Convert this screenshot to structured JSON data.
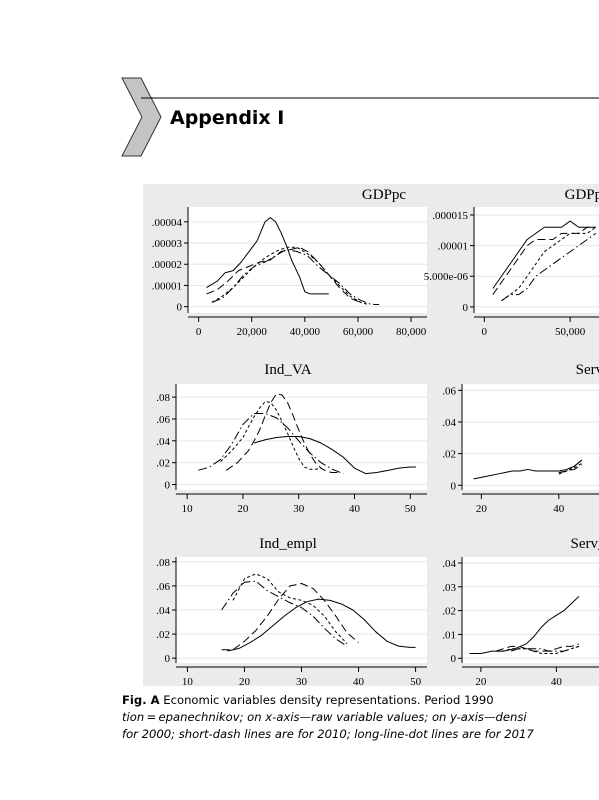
{
  "header": {
    "title": "Appendix I"
  },
  "chart_data": [
    {
      "type": "line",
      "title": "GDPpc",
      "yticks": [
        ".00004",
        ".00003",
        ".00002",
        ".00001",
        "0"
      ],
      "xticks": [
        "0",
        "20,000",
        "40,000",
        "60,000",
        "80,000"
      ],
      "xlim": [
        -4000,
        86000
      ],
      "ylim": [
        -3e-06,
        4.7e-05
      ],
      "series": [
        {
          "style": "solid",
          "x": [
            3000,
            7000,
            10000,
            13000,
            16000,
            19000,
            22000,
            25000,
            27000,
            29000,
            31000,
            33000,
            35000,
            38000,
            40000,
            42000,
            44000,
            47000,
            49000
          ],
          "y": [
            9e-06,
            1.2e-05,
            1.6e-05,
            1.7e-05,
            2.1e-05,
            2.6e-05,
            3.1e-05,
            4e-05,
            4.2e-05,
            4e-05,
            3.5e-05,
            2.9e-05,
            2.2e-05,
            1.4e-05,
            7e-06,
            6e-06,
            6e-06,
            6e-06,
            6e-06
          ]
        },
        {
          "style": "long-dash",
          "x": [
            3000,
            7000,
            11000,
            15000,
            19000,
            23000,
            27000,
            31000,
            35000,
            38000,
            41000,
            45000,
            49000,
            53000,
            57000,
            61000
          ],
          "y": [
            6e-06,
            8e-06,
            1.2e-05,
            1.7e-05,
            1.9e-05,
            2.1e-05,
            2.2e-05,
            2.6e-05,
            2.7e-05,
            2.8e-05,
            2.6e-05,
            2.1e-05,
            1.5e-05,
            9e-06,
            4e-06,
            2e-06
          ]
        },
        {
          "style": "short-dash",
          "x": [
            5000,
            9000,
            13000,
            17000,
            21000,
            25000,
            29000,
            33000,
            37000,
            41000,
            45000,
            49000,
            53000,
            57000,
            61000,
            64000
          ],
          "y": [
            2e-06,
            5e-06,
            9e-06,
            1.4e-05,
            1.9e-05,
            2.3e-05,
            2.6e-05,
            2.8e-05,
            2.8e-05,
            2.5e-05,
            2.1e-05,
            1.5e-05,
            1e-05,
            5e-06,
            2e-06,
            1e-06
          ]
        },
        {
          "style": "long-line-dot",
          "x": [
            5000,
            9000,
            13000,
            17000,
            21000,
            25000,
            29000,
            33000,
            37000,
            41000,
            45000,
            49000,
            53000,
            57000,
            61000,
            65000,
            68000
          ],
          "y": [
            2e-06,
            4e-06,
            9e-06,
            1.5e-05,
            1.9e-05,
            2.1e-05,
            2.4e-05,
            2.7e-05,
            2.6e-05,
            2.4e-05,
            1.9e-05,
            1.5e-05,
            1.1e-05,
            6e-06,
            3e-06,
            1e-06,
            1e-06
          ]
        }
      ]
    },
    {
      "type": "line",
      "title": "GDPpc_PPS",
      "yticks": [
        ".000015",
        ".00001",
        "5.000e-06",
        "0"
      ],
      "xticks": [
        "0",
        "50,000"
      ],
      "xlim": [
        -6000,
        75000
      ],
      "ylim": [
        -1e-06,
        1.63e-05
      ],
      "series": [
        {
          "style": "solid",
          "x": [
            5000,
            10000,
            15000,
            20000,
            25000,
            30000,
            35000,
            40000,
            45000,
            50000,
            55000,
            60000,
            65000
          ],
          "y": [
            3e-06,
            5e-06,
            7e-06,
            9e-06,
            1.1e-05,
            1.2e-05,
            1.3e-05,
            1.3e-05,
            1.3e-05,
            1.4e-05,
            1.3e-05,
            1.3e-05,
            1.3e-05
          ]
        },
        {
          "style": "long-dash",
          "x": [
            5000,
            10000,
            15000,
            20000,
            25000,
            30000,
            35000,
            40000,
            45000,
            50000,
            55000,
            60000,
            65000
          ],
          "y": [
            2e-06,
            4e-06,
            6e-06,
            8e-06,
            1e-05,
            1.1e-05,
            1.1e-05,
            1.1e-05,
            1.2e-05,
            1.2e-05,
            1.2e-05,
            1.3e-05,
            1.3e-05
          ]
        },
        {
          "style": "short-dash",
          "x": [
            10000,
            15000,
            20000,
            25000,
            30000,
            35000,
            40000,
            45000,
            50000,
            55000,
            60000,
            65000
          ],
          "y": [
            1e-06,
            2e-06,
            3e-06,
            5e-06,
            7e-06,
            9e-06,
            1e-05,
            1.1e-05,
            1.2e-05,
            1.2e-05,
            1.2e-05,
            1.3e-05
          ]
        },
        {
          "style": "long-line-dot",
          "x": [
            10000,
            15000,
            20000,
            25000,
            30000,
            35000,
            40000,
            45000,
            50000,
            55000,
            60000,
            65000
          ],
          "y": [
            1e-06,
            2e-06,
            2e-06,
            3e-06,
            5e-06,
            6e-06,
            7e-06,
            8e-06,
            9e-06,
            1e-05,
            1.1e-05,
            1.2e-05
          ]
        }
      ]
    },
    {
      "type": "line",
      "title": "Ind_VA",
      "yticks": [
        ".08",
        ".06",
        ".04",
        ".02",
        "0"
      ],
      "xticks": [
        "10",
        "20",
        "30",
        "40",
        "50"
      ],
      "xlim": [
        8,
        53
      ],
      "ylim": [
        -0.005,
        0.092
      ],
      "series": [
        {
          "style": "solid",
          "x": [
            22,
            24,
            26,
            28,
            30,
            32,
            34,
            36,
            38,
            40,
            42,
            44,
            46,
            48,
            50,
            51
          ],
          "y": [
            0.038,
            0.041,
            0.043,
            0.044,
            0.044,
            0.042,
            0.038,
            0.032,
            0.025,
            0.015,
            0.01,
            0.011,
            0.013,
            0.015,
            0.016,
            0.016
          ]
        },
        {
          "style": "long-dash",
          "x": [
            17,
            19,
            21,
            22,
            23,
            24,
            25,
            26,
            27,
            28,
            29,
            30,
            31,
            32,
            33,
            34,
            35,
            36,
            37
          ],
          "y": [
            0.013,
            0.02,
            0.031,
            0.04,
            0.05,
            0.063,
            0.075,
            0.083,
            0.082,
            0.075,
            0.063,
            0.05,
            0.038,
            0.028,
            0.02,
            0.015,
            0.012,
            0.011,
            0.011
          ]
        },
        {
          "style": "short-dash",
          "x": [
            16,
            18,
            20,
            21,
            22,
            23,
            24,
            25,
            26,
            27,
            28,
            29,
            30,
            31,
            32,
            33,
            34
          ],
          "y": [
            0.021,
            0.031,
            0.043,
            0.053,
            0.062,
            0.07,
            0.076,
            0.075,
            0.068,
            0.058,
            0.047,
            0.035,
            0.024,
            0.016,
            0.014,
            0.014,
            0.015
          ]
        },
        {
          "style": "long-line-dot",
          "x": [
            12,
            14,
            16,
            18,
            20,
            22,
            24,
            26,
            28,
            30,
            32,
            34,
            36,
            38
          ],
          "y": [
            0.013,
            0.016,
            0.023,
            0.037,
            0.055,
            0.065,
            0.065,
            0.061,
            0.052,
            0.04,
            0.029,
            0.02,
            0.014,
            0.01
          ]
        }
      ]
    },
    {
      "type": "line",
      "title": "Serv_VA",
      "yticks": [
        ".06",
        ".04",
        ".02",
        "0"
      ],
      "xticks": [
        "20",
        "40"
      ],
      "xlim": [
        15,
        54
      ],
      "ylim": [
        -0.003,
        0.064
      ],
      "series": [
        {
          "style": "solid",
          "x": [
            18,
            20,
            22,
            24,
            26,
            28,
            30,
            32,
            34,
            36,
            38,
            40,
            42,
            44,
            46
          ],
          "y": [
            0.004,
            0.005,
            0.006,
            0.007,
            0.008,
            0.009,
            0.009,
            0.01,
            0.009,
            0.009,
            0.009,
            0.009,
            0.01,
            0.012,
            0.016
          ]
        },
        {
          "style": "long-dash",
          "x": [
            40,
            42,
            44,
            46
          ],
          "y": [
            0.008,
            0.009,
            0.01,
            0.013
          ]
        },
        {
          "style": "short-dash",
          "x": [
            40,
            42,
            44,
            46
          ],
          "y": [
            0.007,
            0.009,
            0.011,
            0.014
          ]
        },
        {
          "style": "long-line-dot",
          "x": [
            40,
            42,
            44,
            46
          ],
          "y": [
            0.008,
            0.009,
            0.012,
            0.016
          ]
        }
      ]
    },
    {
      "type": "line",
      "title": "Ind_empl",
      "yticks": [
        ".08",
        ".06",
        ".04",
        ".02",
        "0"
      ],
      "xticks": [
        "10",
        "20",
        "30",
        "40",
        "50"
      ],
      "xlim": [
        8,
        52
      ],
      "ylim": [
        -0.004,
        0.084
      ],
      "series": [
        {
          "style": "solid",
          "x": [
            17,
            19,
            21,
            23,
            25,
            27,
            29,
            31,
            33,
            35,
            37,
            39,
            41,
            43,
            45,
            47,
            49,
            50
          ],
          "y": [
            0.006,
            0.008,
            0.013,
            0.019,
            0.027,
            0.035,
            0.042,
            0.047,
            0.049,
            0.048,
            0.045,
            0.04,
            0.032,
            0.022,
            0.014,
            0.01,
            0.009,
            0.009
          ]
        },
        {
          "style": "long-dash",
          "x": [
            16,
            18,
            20,
            22,
            24,
            26,
            28,
            30,
            32,
            34,
            36,
            38,
            40
          ],
          "y": [
            0.007,
            0.007,
            0.014,
            0.023,
            0.035,
            0.049,
            0.06,
            0.062,
            0.058,
            0.048,
            0.035,
            0.021,
            0.013
          ]
        },
        {
          "style": "short-dash",
          "x": [
            18,
            20,
            22,
            24,
            26,
            28,
            30,
            32,
            34,
            36,
            38
          ],
          "y": [
            0.048,
            0.066,
            0.07,
            0.066,
            0.055,
            0.05,
            0.048,
            0.044,
            0.035,
            0.022,
            0.012
          ]
        },
        {
          "style": "long-line-dot",
          "x": [
            16,
            18,
            20,
            22,
            24,
            26,
            28,
            30,
            32,
            34,
            36,
            38
          ],
          "y": [
            0.04,
            0.054,
            0.063,
            0.064,
            0.056,
            0.051,
            0.046,
            0.042,
            0.035,
            0.025,
            0.016,
            0.01
          ]
        }
      ]
    },
    {
      "type": "line",
      "title": "Serv_empl",
      "yticks": [
        ".04",
        ".03",
        ".02",
        ".01",
        "0"
      ],
      "xticks": [
        "20",
        "40"
      ],
      "xlim": [
        15,
        55
      ],
      "ylim": [
        -0.002,
        0.0425
      ],
      "series": [
        {
          "style": "solid",
          "x": [
            17,
            20,
            23,
            26,
            29,
            32,
            34,
            36,
            38,
            40,
            42,
            44,
            46
          ],
          "y": [
            0.002,
            0.002,
            0.003,
            0.003,
            0.004,
            0.006,
            0.009,
            0.013,
            0.016,
            0.018,
            0.02,
            0.023,
            0.026
          ]
        },
        {
          "style": "long-dash",
          "x": [
            24,
            26,
            28,
            30,
            32,
            34,
            36,
            38,
            40,
            42,
            44,
            46
          ],
          "y": [
            0.003,
            0.004,
            0.005,
            0.005,
            0.004,
            0.003,
            0.003,
            0.003,
            0.004,
            0.005,
            0.005,
            0.006
          ]
        },
        {
          "style": "short-dash",
          "x": [
            24,
            26,
            28,
            30,
            32,
            34,
            36,
            38,
            40,
            42,
            44,
            46
          ],
          "y": [
            0.003,
            0.003,
            0.004,
            0.004,
            0.004,
            0.003,
            0.002,
            0.002,
            0.002,
            0.003,
            0.004,
            0.005
          ]
        },
        {
          "style": "long-line-dot",
          "x": [
            28,
            30,
            32,
            34,
            36,
            38,
            40,
            42,
            44,
            46
          ],
          "y": [
            0.003,
            0.004,
            0.004,
            0.004,
            0.004,
            0.003,
            0.003,
            0.003,
            0.004,
            0.005
          ]
        }
      ]
    }
  ],
  "caption": {
    "label": "Fig. A",
    "line1": " Economic variables density representations. Period 1990",
    "line2": "tion = epanechnikov; on x-axis—raw variable values; on y-axis—densi",
    "line3": "for 2000; short-dash lines are for 2010; long-line-dot lines are for 2017"
  }
}
